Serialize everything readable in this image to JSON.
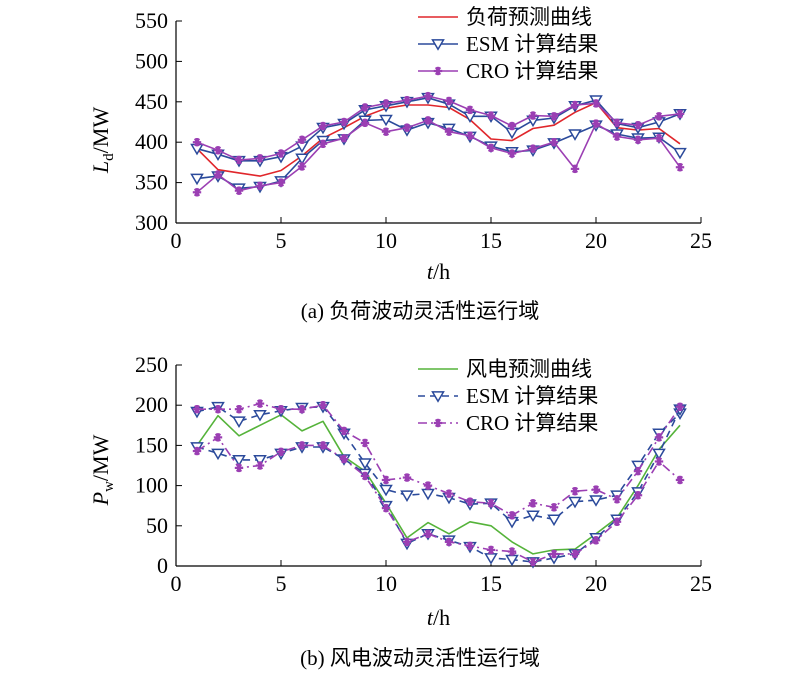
{
  "chart_data": [
    {
      "type": "line",
      "caption": "(a) 负荷波动灵活性运行域",
      "ylabel_main": "L",
      "ylabel_sub": "d",
      "ylabel_unit": "/MW",
      "xlabel_main": "t",
      "xlabel_unit": "/h",
      "xlim": [
        0,
        25
      ],
      "ylim": [
        300,
        550
      ],
      "xticks": [
        0,
        5,
        10,
        15,
        20,
        25
      ],
      "yticks": [
        300,
        350,
        400,
        450,
        500,
        550
      ],
      "grid": false,
      "legend_position": "top-right",
      "legend": [
        {
          "label": "负荷预测曲线",
          "color": "#e0262b",
          "marker": "none",
          "dash": "solid"
        },
        {
          "label": "ESM 计算结果",
          "color": "#2b4a9b",
          "marker": "triangle-down",
          "dash": "solid"
        },
        {
          "label": "CRO 计算结果",
          "color": "#9b3fb3",
          "marker": "asterisk",
          "dash": "solid"
        }
      ],
      "x": [
        1,
        2,
        3,
        4,
        5,
        6,
        7,
        8,
        9,
        10,
        11,
        12,
        13,
        14,
        15,
        16,
        17,
        18,
        19,
        20,
        21,
        22,
        23,
        24
      ],
      "series": [
        {
          "name": "负荷预测曲线",
          "color": "#e0262b",
          "marker": "none",
          "values": [
            392,
            366,
            362,
            358,
            365,
            383,
            405,
            418,
            432,
            442,
            446,
            446,
            443,
            428,
            404,
            402,
            417,
            421,
            437,
            449,
            418,
            415,
            417,
            398
          ]
        },
        {
          "name": "ESM 计算结果",
          "color": "#2b4a9b",
          "marker": "triangle-down",
          "values": [
            392,
            385,
            377,
            377,
            382,
            395,
            418,
            423,
            440,
            445,
            450,
            455,
            447,
            432,
            432,
            412,
            427,
            430,
            445,
            452,
            423,
            418,
            425,
            435
          ]
        },
        {
          "name": "ESM 计算结果",
          "color": "#2b4a9b",
          "marker": "triangle-down",
          "values": [
            355,
            358,
            343,
            345,
            352,
            380,
            402,
            404,
            427,
            428,
            415,
            424,
            417,
            407,
            395,
            388,
            390,
            399,
            410,
            421,
            410,
            405,
            406,
            387
          ]
        },
        {
          "name": "CRO 计算结果",
          "color": "#9b3fb3",
          "marker": "asterisk",
          "values": [
            400,
            390,
            378,
            380,
            386,
            403,
            420,
            425,
            443,
            448,
            452,
            457,
            451,
            440,
            433,
            420,
            433,
            432,
            446,
            448,
            424,
            421,
            432,
            435
          ]
        },
        {
          "name": "CRO 计算结果",
          "color": "#9b3fb3",
          "marker": "asterisk",
          "values": [
            338,
            360,
            340,
            346,
            350,
            370,
            398,
            405,
            424,
            413,
            418,
            427,
            413,
            408,
            393,
            386,
            392,
            400,
            367,
            423,
            407,
            403,
            405,
            369
          ]
        }
      ]
    },
    {
      "type": "line",
      "caption": "(b) 风电波动灵活性运行域",
      "ylabel_main": "P",
      "ylabel_sub": "w",
      "ylabel_unit": "/MW",
      "xlabel_main": "t",
      "xlabel_unit": "/h",
      "xlim": [
        0,
        25
      ],
      "ylim": [
        0,
        250
      ],
      "xticks": [
        0,
        5,
        10,
        15,
        20,
        25
      ],
      "yticks": [
        0,
        50,
        100,
        150,
        200,
        250
      ],
      "grid": false,
      "legend_position": "top-right",
      "legend": [
        {
          "label": "风电预测曲线",
          "color": "#55b33a",
          "marker": "none",
          "dash": "solid"
        },
        {
          "label": "ESM 计算结果",
          "color": "#2b4a9b",
          "marker": "triangle-down",
          "dash": "dashed"
        },
        {
          "label": "CRO 计算结果",
          "color": "#9b3fb3",
          "marker": "asterisk",
          "dash": "dashdot"
        }
      ],
      "x": [
        1,
        2,
        3,
        4,
        5,
        6,
        7,
        8,
        9,
        10,
        11,
        12,
        13,
        14,
        15,
        16,
        17,
        18,
        19,
        20,
        21,
        22,
        23,
        24
      ],
      "series": [
        {
          "name": "风电预测曲线",
          "color": "#55b33a",
          "marker": "none",
          "values": [
            150,
            187,
            162,
            175,
            188,
            168,
            180,
            136,
            118,
            78,
            35,
            54,
            40,
            55,
            50,
            30,
            15,
            20,
            21,
            40,
            60,
            100,
            145,
            175
          ]
        },
        {
          "name": "ESM 计算结果",
          "color": "#2b4a9b",
          "marker": "triangle-down",
          "values": [
            192,
            198,
            180,
            188,
            193,
            197,
            198,
            165,
            128,
            95,
            88,
            90,
            85,
            77,
            78,
            55,
            63,
            58,
            80,
            82,
            88,
            125,
            165,
            190
          ]
        },
        {
          "name": "ESM 计算结果",
          "color": "#2b4a9b",
          "marker": "triangle-down",
          "values": [
            148,
            140,
            132,
            132,
            140,
            148,
            148,
            133,
            115,
            75,
            28,
            40,
            32,
            24,
            10,
            8,
            5,
            10,
            15,
            35,
            58,
            92,
            140,
            195
          ]
        },
        {
          "name": "CRO 计算结果",
          "color": "#9b3fb3",
          "marker": "asterisk",
          "values": [
            195,
            195,
            195,
            202,
            195,
            195,
            200,
            168,
            153,
            107,
            110,
            100,
            90,
            80,
            78,
            63,
            78,
            73,
            93,
            95,
            83,
            118,
            160,
            198
          ]
        },
        {
          "name": "CRO 计算结果",
          "color": "#9b3fb3",
          "marker": "asterisk",
          "values": [
            143,
            160,
            122,
            125,
            142,
            150,
            150,
            133,
            112,
            72,
            30,
            40,
            30,
            25,
            20,
            18,
            5,
            15,
            15,
            32,
            55,
            88,
            130,
            107
          ]
        }
      ]
    }
  ]
}
